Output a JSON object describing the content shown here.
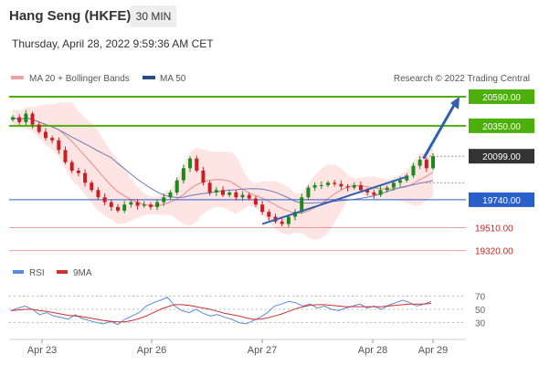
{
  "header": {
    "title": "Hang Seng (HKFE)",
    "timeframe": "30 MIN",
    "timestamp": "Thursday, April 28, 2022 9:59:36 AM CET"
  },
  "legend": {
    "ma20_label": "MA 20 + Bollinger Bands",
    "ma50_label": "MA 50",
    "credit": "Research © 2022 Trading Central",
    "rsi_label": "RSI",
    "rsi_ma_label": "9MA"
  },
  "colors": {
    "resistance": "#4caf0a",
    "support": "#2a5ec8",
    "lower_support": "#e06060",
    "current": "#333333",
    "candle_up": "#1a8a1a",
    "candle_down": "#c82020",
    "bollinger": "#ffd9d9",
    "ma20": "#e88a8a",
    "ma50": "#6a7ab8",
    "arrow": "#2f5fb0",
    "rsi": "#5a8ae0",
    "rsi_ma": "#d03030"
  },
  "chart_data": {
    "type": "candlestick",
    "instrument": "Hang Seng (HKFE)",
    "timeframe": "30 MIN",
    "y_range": [
      19280,
      20650
    ],
    "x_labels": [
      "Apr 23",
      "Apr 26",
      "Apr 27",
      "Apr 28",
      "Apr 29"
    ],
    "levels": [
      {
        "value": 20590,
        "label": "20590.00",
        "role": "resistance"
      },
      {
        "value": 20350,
        "label": "20350.00",
        "role": "resistance"
      },
      {
        "value": 20099,
        "label": "20099.00",
        "role": "current"
      },
      {
        "value": 19740,
        "label": "19740.00",
        "role": "support"
      },
      {
        "value": 19510,
        "label": "19510.00",
        "role": "lower_support"
      },
      {
        "value": 19320,
        "label": "19320.00",
        "role": "lower_support"
      }
    ],
    "closes": [
      20420,
      20380,
      20450,
      20360,
      20300,
      20250,
      20230,
      20150,
      20050,
      19980,
      19960,
      19880,
      19820,
      19760,
      19720,
      19680,
      19650,
      19700,
      19720,
      19690,
      19700,
      19680,
      19720,
      19760,
      19800,
      19900,
      20000,
      20080,
      19980,
      19880,
      19800,
      19820,
      19780,
      19800,
      19760,
      19780,
      19750,
      19700,
      19640,
      19600,
      19560,
      19540,
      19600,
      19640,
      19760,
      19840,
      19860,
      19860,
      19880,
      19870,
      19850,
      19840,
      19860,
      19820,
      19800,
      19780,
      19820,
      19840,
      19880,
      19900,
      19940,
      20020,
      20070,
      20000,
      20099
    ],
    "rsi": {
      "range": [
        10,
        90
      ],
      "ticks": [
        70,
        50,
        30
      ],
      "values": [
        48,
        52,
        55,
        50,
        42,
        45,
        40,
        38,
        35,
        42,
        36,
        33,
        30,
        28,
        32,
        27,
        35,
        40,
        45,
        55,
        60,
        64,
        68,
        55,
        48,
        45,
        50,
        44,
        40,
        42,
        38,
        35,
        30,
        28,
        33,
        38,
        45,
        55,
        58,
        62,
        60,
        55,
        58,
        52,
        55,
        50,
        48,
        52,
        55,
        58,
        52,
        55,
        50,
        56,
        60,
        64,
        60,
        55,
        58,
        62
      ],
      "ma": [
        48,
        49,
        50,
        50,
        48,
        47,
        45,
        43,
        41,
        40,
        39,
        37,
        35,
        33,
        32,
        31,
        31,
        33,
        36,
        40,
        45,
        50,
        54,
        57,
        57,
        56,
        54,
        52,
        50,
        47,
        44,
        42,
        40,
        37,
        35,
        35,
        37,
        40,
        43,
        47,
        51,
        54,
        56,
        57,
        57,
        56,
        55,
        54,
        54,
        54,
        54,
        54,
        54,
        55,
        56,
        57,
        58,
        58,
        58,
        59
      ]
    }
  }
}
